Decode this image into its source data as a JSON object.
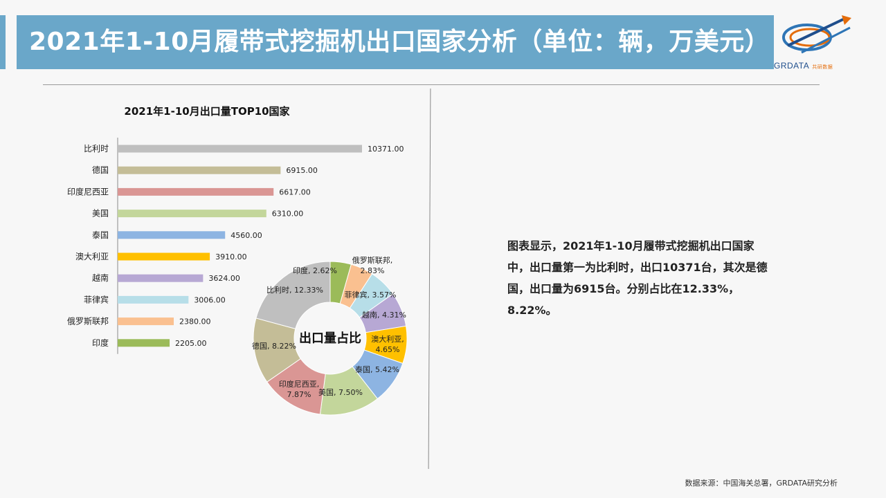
{
  "header": {
    "title": "2021年1-10月履带式挖掘机出口国家分析（单位：辆，万美元）",
    "logo_text": "GRDATA",
    "logo_sub": "共研数据"
  },
  "chart_data": [
    {
      "type": "bar",
      "orientation": "horizontal",
      "title": "2021年1-10月出口量TOP10国家",
      "categories": [
        "比利时",
        "德国",
        "印度尼西亚",
        "美国",
        "泰国",
        "澳大利亚",
        "越南",
        "菲律宾",
        "俄罗斯联邦",
        "印度"
      ],
      "values": [
        10371.0,
        6915.0,
        6617.0,
        6310.0,
        4560.0,
        3910.0,
        3624.0,
        3006.0,
        2380.0,
        2205.0
      ],
      "value_labels": [
        "10371.00",
        "6915.00",
        "6617.00",
        "6310.00",
        "4560.00",
        "3910.00",
        "3624.00",
        "3006.00",
        "2380.00",
        "2205.00"
      ],
      "colors": [
        "#bfbfbf",
        "#c4bd97",
        "#da9694",
        "#c3d69b",
        "#8db4e2",
        "#ffc000",
        "#b7a8d4",
        "#b7dee8",
        "#fac090",
        "#9bbb59"
      ],
      "xlim": [
        0,
        10371
      ]
    },
    {
      "type": "pie",
      "style": "donut",
      "center_label": "出口量占比",
      "slices": [
        {
          "name": "印度",
          "label": "印度, 2.62%",
          "value": 2.62,
          "color": "#9bbb59"
        },
        {
          "name": "俄罗斯联邦",
          "label": "俄罗斯联邦, 2.83%",
          "value": 2.83,
          "color": "#fac090"
        },
        {
          "name": "菲律宾",
          "label": "菲律宾, 3.57%",
          "value": 3.57,
          "color": "#b7dee8"
        },
        {
          "name": "越南",
          "label": "越南, 4.31%",
          "value": 4.31,
          "color": "#b7a8d4"
        },
        {
          "name": "澳大利亚",
          "label": "澳大利亚, 4.65%",
          "value": 4.65,
          "color": "#ffc000"
        },
        {
          "name": "泰国",
          "label": "泰国, 5.42%",
          "value": 5.42,
          "color": "#8db4e2"
        },
        {
          "name": "美国",
          "label": "美国, 7.50%",
          "value": 7.5,
          "color": "#c3d69b"
        },
        {
          "name": "印度尼西亚",
          "label": "印度尼西亚, 7.87%",
          "value": 7.87,
          "color": "#da9694"
        },
        {
          "name": "德国",
          "label": "德国, 8.22%",
          "value": 8.22,
          "color": "#c4bd97"
        },
        {
          "name": "比利时",
          "label": "比利时, 12.33%",
          "value": 12.33,
          "color": "#bfbfbf"
        }
      ]
    }
  ],
  "description": "图表显示，2021年1-10月履带式挖掘机出口国家中，出口量第一为比利时，出口10371台，其次是德国，出口量为6915台。分别占比在12.33%，8.22%。",
  "source": "数据来源：中国海关总署，GRDATA研究分析"
}
